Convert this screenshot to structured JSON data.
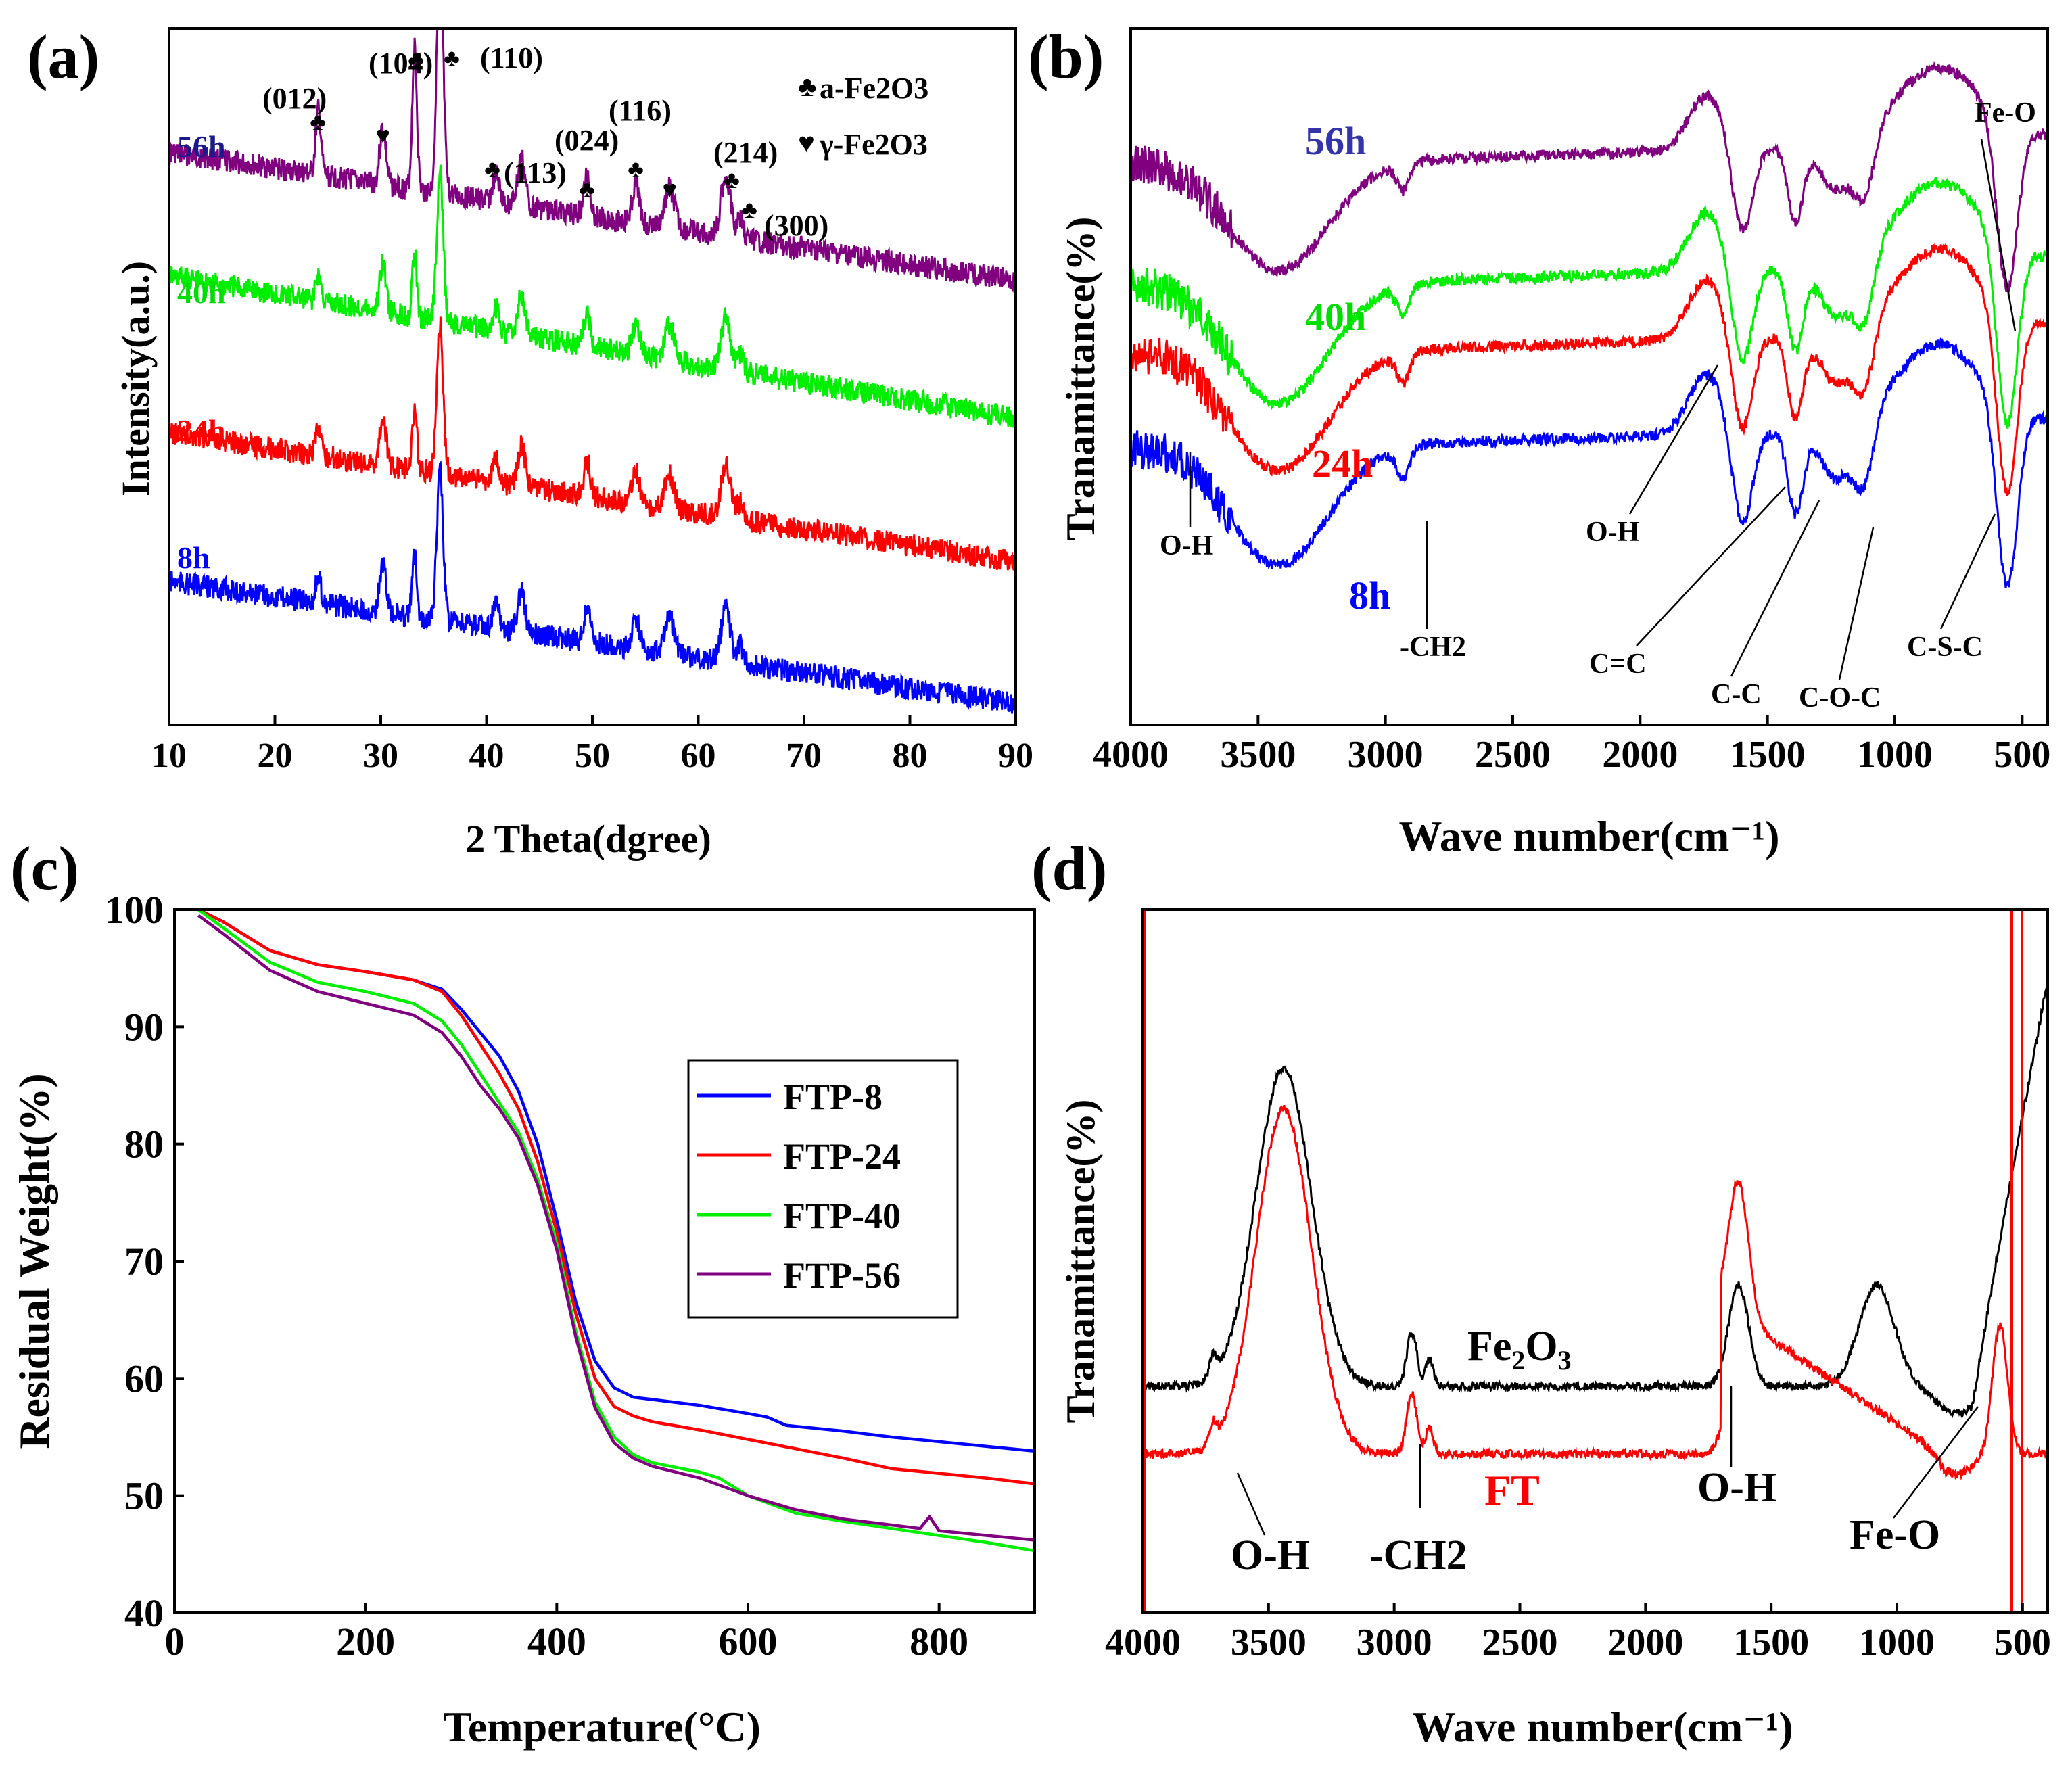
{
  "chart_data": [
    {
      "id": "a",
      "panel_label": "(a)",
      "type": "line",
      "title": "",
      "xlabel": "2 Theta(dgree)",
      "ylabel": "Intensity(a.u.)",
      "xlim": [
        10,
        90
      ],
      "x_ticks": [
        "10",
        "20",
        "30",
        "40",
        "50",
        "60",
        "70",
        "80",
        "90"
      ],
      "y_ticks_shown": false,
      "grid": false,
      "legend": [
        {
          "symbol": "♣",
          "text": "a-Fe2O3"
        },
        {
          "symbol": "♥",
          "text": "γ-Fe2O3"
        }
      ],
      "peak_labels": [
        {
          "text": "(012)",
          "x": 24.1,
          "phase": "♣"
        },
        {
          "text": "(104)",
          "x": 33.2,
          "phase": "♣"
        },
        {
          "text": "(110)",
          "x": 35.6,
          "phase": "♣"
        },
        {
          "text": "(113)",
          "x": 40.9,
          "phase": "♣"
        },
        {
          "text": "(024)",
          "x": 49.5,
          "phase": "♣"
        },
        {
          "text": "(116)",
          "x": 54.1,
          "phase": "♣"
        },
        {
          "text": "(214)",
          "x": 62.4,
          "phase": "♣"
        },
        {
          "text": "(300)",
          "x": 64.0,
          "phase": "♣"
        }
      ],
      "gamma_peaks_x": [
        30.2,
        57.3
      ],
      "series": [
        {
          "name": "56h",
          "color": "#800080",
          "label_color": "#1a1a8c",
          "offset": 3.0
        },
        {
          "name": "40h",
          "color": "#00ee00",
          "label_color": "#00dd00",
          "offset": 2.0
        },
        {
          "name": "24h",
          "color": "#ff0000",
          "label_color": "#ff0000",
          "offset": 1.0
        },
        {
          "name": "8h",
          "color": "#0000ff",
          "label_color": "#0000ff",
          "offset": 0.0
        }
      ]
    },
    {
      "id": "b",
      "panel_label": "(b)",
      "type": "line",
      "title": "",
      "xlabel": "Wave number(cm⁻¹)",
      "ylabel": "Tranamittance(%)",
      "xlim": [
        4000,
        400
      ],
      "x_ticks": [
        "4000",
        "3500",
        "3000",
        "2500",
        "2000",
        "1500",
        "1000",
        "500"
      ],
      "y_ticks_shown": false,
      "grid": false,
      "annotations": [
        {
          "text": "O-H",
          "x": 3800
        },
        {
          "text": "-CH2",
          "x": 2920
        },
        {
          "text": "O-H",
          "x": 1720
        },
        {
          "text": "C=C",
          "x": 1600
        },
        {
          "text": "C-C",
          "x": 1390
        },
        {
          "text": "C-O-C",
          "x": 1120
        },
        {
          "text": "C-S-C",
          "x": 630
        },
        {
          "text": "Fe-O",
          "x": 560
        }
      ],
      "series": [
        {
          "name": "56h",
          "color": "#800080",
          "label_color": "#3333aa",
          "offset": 3.0
        },
        {
          "name": "40h",
          "color": "#00ee00",
          "label_color": "#00dd00",
          "offset": 2.0
        },
        {
          "name": "24h",
          "color": "#ff0000",
          "label_color": "#ff0000",
          "offset": 1.0
        },
        {
          "name": "8h",
          "color": "#0000ff",
          "label_color": "#0000ff",
          "offset": 0.0
        }
      ]
    },
    {
      "id": "c",
      "panel_label": "(c)",
      "type": "line",
      "title": "",
      "xlabel": "Temperature(°C)",
      "ylabel": "Residual Weight(%)",
      "xlim": [
        0,
        900
      ],
      "ylim": [
        40,
        100
      ],
      "x_ticks": [
        "0",
        "200",
        "400",
        "600",
        "800"
      ],
      "y_ticks": [
        "40",
        "50",
        "60",
        "70",
        "80",
        "90",
        "100"
      ],
      "grid": false,
      "legend_position": "center-right",
      "series": [
        {
          "name": "FTP-8",
          "color": "#0000ff",
          "x": [
            25,
            50,
            100,
            150,
            200,
            250,
            280,
            300,
            320,
            340,
            360,
            380,
            400,
            420,
            440,
            460,
            480,
            500,
            550,
            600,
            620,
            640,
            700,
            750,
            800,
            850,
            900
          ],
          "y": [
            100,
            99,
            96.5,
            95.3,
            94.7,
            94,
            93.2,
            91.5,
            89.5,
            87.5,
            84.5,
            80,
            73.5,
            66.5,
            61.5,
            59.2,
            58.4,
            58.2,
            57.7,
            57,
            56.7,
            56,
            55.5,
            55,
            54.6,
            54.2,
            53.8
          ]
        },
        {
          "name": "FTP-24",
          "color": "#ff0000",
          "x": [
            25,
            50,
            100,
            150,
            200,
            250,
            280,
            300,
            320,
            340,
            360,
            380,
            400,
            420,
            440,
            460,
            480,
            500,
            550,
            600,
            650,
            700,
            750,
            800,
            850,
            900
          ],
          "y": [
            100,
            99,
            96.5,
            95.3,
            94.7,
            94,
            93,
            91,
            88.5,
            86,
            83,
            78.5,
            72.5,
            65.5,
            60,
            57.6,
            56.8,
            56.3,
            55.6,
            54.8,
            54,
            53.2,
            52.3,
            51.9,
            51.5,
            51
          ]
        },
        {
          "name": "FTP-40",
          "color": "#00ee00",
          "x": [
            25,
            50,
            100,
            150,
            200,
            250,
            280,
            300,
            320,
            340,
            360,
            380,
            400,
            420,
            440,
            460,
            480,
            500,
            550,
            570,
            600,
            650,
            700,
            750,
            800,
            850,
            900
          ],
          "y": [
            100,
            98.5,
            95.5,
            93.8,
            93,
            92,
            90.5,
            88.5,
            86,
            83.5,
            81,
            77,
            71.5,
            64,
            58,
            55,
            53.5,
            52.8,
            52,
            51.5,
            50,
            48.5,
            47.8,
            47.2,
            46.6,
            46,
            45.3
          ]
        },
        {
          "name": "FTP-56",
          "color": "#800080",
          "x": [
            25,
            50,
            100,
            150,
            200,
            250,
            280,
            300,
            320,
            340,
            360,
            380,
            400,
            420,
            440,
            460,
            480,
            500,
            550,
            600,
            650,
            700,
            750,
            780,
            790,
            800,
            850,
            900
          ],
          "y": [
            99.5,
            98,
            94.8,
            93,
            92,
            91,
            89.5,
            87.5,
            85,
            83,
            80.5,
            76.5,
            71,
            63.5,
            57.5,
            54.5,
            53.2,
            52.5,
            51.5,
            50,
            48.8,
            48,
            47.5,
            47.2,
            48.2,
            47,
            46.6,
            46.2
          ]
        }
      ]
    },
    {
      "id": "d",
      "panel_label": "(d)",
      "type": "line",
      "title": "",
      "xlabel": "Wave number(cm⁻¹)",
      "ylabel": "Tranamittance(%)",
      "xlim": [
        4000,
        400
      ],
      "x_ticks": [
        "4000",
        "3500",
        "3000",
        "2500",
        "2000",
        "1500",
        "1000",
        "500"
      ],
      "y_ticks_shown": false,
      "grid": false,
      "annotations": [
        {
          "text": "O-H",
          "x": 3710
        },
        {
          "text": "-CH2",
          "x": 2870
        },
        {
          "text": "O-H",
          "x": 1620
        },
        {
          "text": "Fe-O",
          "x": 570
        }
      ],
      "series": [
        {
          "name": "Fe2O3",
          "color": "#000000",
          "offset": 1.0
        },
        {
          "name": "FT",
          "color": "#ff0000",
          "offset": 0.0
        }
      ]
    }
  ]
}
